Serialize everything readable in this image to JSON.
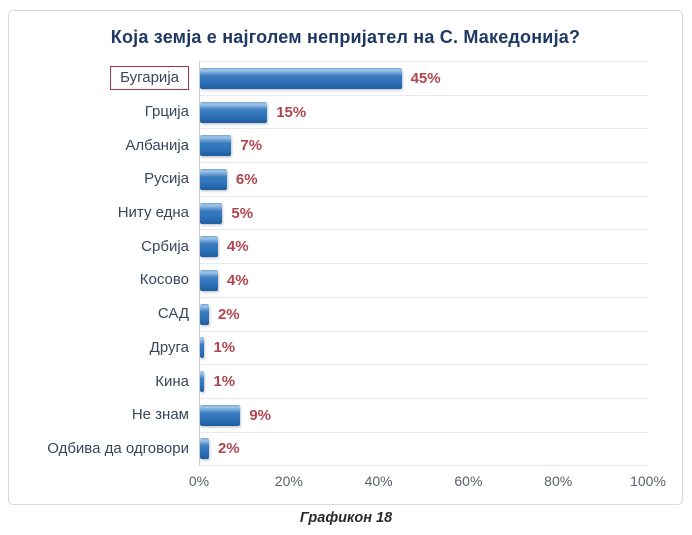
{
  "chart_data": {
    "type": "bar",
    "orientation": "horizontal",
    "title": "Која земја е најголем непријател на С. Македонија?",
    "categories": [
      "Бугарија",
      "Грција",
      "Албанија",
      "Русија",
      "Ниту една",
      "Србија",
      "Косово",
      "САД",
      "Друга",
      "Кина",
      "Не знам",
      "Одбива да одговори"
    ],
    "values": [
      45,
      15,
      7,
      6,
      5,
      4,
      4,
      2,
      1,
      1,
      9,
      2
    ],
    "value_labels": [
      "45%",
      "15%",
      "7%",
      "6%",
      "5%",
      "4%",
      "4%",
      "2%",
      "1%",
      "1%",
      "9%",
      "2%"
    ],
    "highlight_index": 0,
    "highlighted_category": "Бугарија",
    "xlim": [
      0,
      100
    ],
    "x_ticks": [
      "0%",
      "20%",
      "40%",
      "60%",
      "80%",
      "100%"
    ],
    "x_tick_values": [
      0,
      20,
      40,
      60,
      80,
      100
    ],
    "grid": "horizontal row separator lines only",
    "legend": "none",
    "bar_color": "#2E72B8",
    "value_label_color": "#B0454F",
    "category_label_color": "#39465C",
    "title_color": "#1F3864",
    "highlight_box_color": "#A23940",
    "caption": "Графикон 18"
  }
}
